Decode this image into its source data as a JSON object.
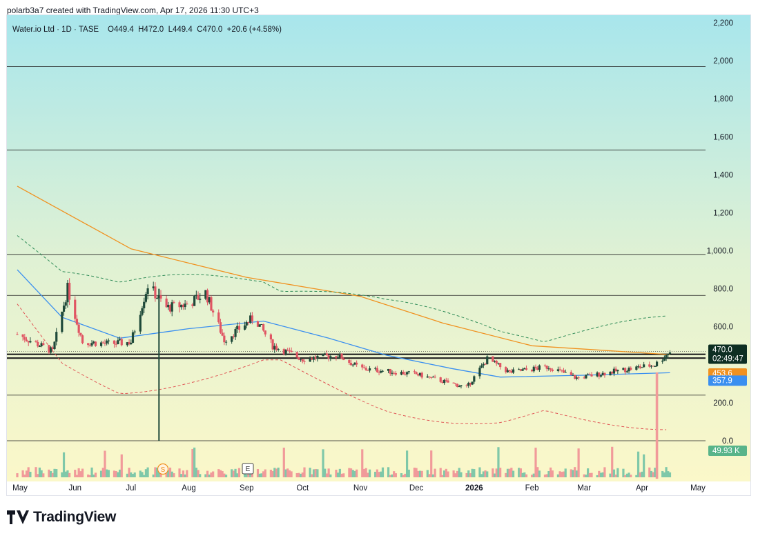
{
  "header": {
    "published_by": "polarb3a7 created with TradingView.com, Apr 17, 2026 11:30 UTC+3"
  },
  "legend": {
    "symbol": "Water.io Ltd · 1D · TASE",
    "ohlc": "O449.4  H472.0  L449.4  C470.0  +20.6 (+4.58%)"
  },
  "price_axis": {
    "ticks": [
      "2,200",
      "2,000",
      "1,800",
      "1,600",
      "1,400",
      "1,200",
      "1,000.0",
      "800.0",
      "600.0",
      "200.0",
      "0.0"
    ]
  },
  "time_axis": {
    "ticks": [
      "May",
      "Jun",
      "Jul",
      "Aug",
      "Sep",
      "Oct",
      "Nov",
      "Dec",
      "2026",
      "Feb",
      "Mar",
      "Apr",
      "May"
    ]
  },
  "badges": {
    "last_price": "470.0",
    "countdown": "02:49:47",
    "ma_orange": "453.6",
    "ma_blue": "357.9",
    "volume": "49.93 K"
  },
  "event_markers": {
    "split": "S",
    "earnings": "E"
  },
  "brand": {
    "name": "TradingView"
  },
  "colors": {
    "up": "#1f4a3a",
    "down": "#e05563",
    "vol_up": "#7fc8a9",
    "vol_down": "#f19a9a",
    "ma_long": "#f0911f",
    "ma_short": "#3a8ff0",
    "bb": "#2e8b57",
    "bb_lower": "#e05555",
    "hline": "#1e1e1e",
    "badge_dark": "#0d2e22",
    "badge_orange": "#f0911f",
    "badge_blue": "#3a8ff0",
    "badge_green": "#58b48a",
    "bg_top": "#a8e6ec",
    "bg_bottom": "#fdf8c8"
  },
  "chart_data": {
    "type": "candlestick",
    "yscale": "linear",
    "ylim": [
      -200,
      2200
    ],
    "horizontal_lines": [
      1970,
      1530,
      980,
      765,
      455,
      435,
      240,
      0
    ],
    "x_labels": [
      "May",
      "Jun",
      "Jul",
      "Aug",
      "Sep",
      "Oct",
      "Nov",
      "Dec",
      "2026",
      "Feb",
      "Mar",
      "Apr",
      "May"
    ],
    "price_path": [
      [
        "2025-05-01",
        560
      ],
      [
        "2025-05-20",
        470
      ],
      [
        "2025-05-28",
        800
      ],
      [
        "2025-06-05",
        520
      ],
      [
        "2025-06-20",
        510
      ],
      [
        "2025-07-01",
        520
      ],
      [
        "2025-07-10",
        820
      ],
      [
        "2025-07-20",
        700
      ],
      [
        "2025-08-01",
        720
      ],
      [
        "2025-08-10",
        780
      ],
      [
        "2025-08-20",
        530
      ],
      [
        "2025-09-05",
        650
      ],
      [
        "2025-09-15",
        500
      ],
      [
        "2025-10-01",
        430
      ],
      [
        "2025-10-20",
        450
      ],
      [
        "2025-11-01",
        380
      ],
      [
        "2025-12-01",
        350
      ],
      [
        "2025-12-28",
        280
      ],
      [
        "2026-01-08",
        430
      ],
      [
        "2026-01-20",
        360
      ],
      [
        "2026-02-10",
        390
      ],
      [
        "2026-02-25",
        330
      ],
      [
        "2026-03-20",
        370
      ],
      [
        "2026-04-08",
        400
      ],
      [
        "2026-04-16",
        470
      ]
    ],
    "last": {
      "open": 449.4,
      "high": 472.0,
      "low": 449.4,
      "close": 470.0,
      "change": 20.6,
      "change_pct": 4.58
    },
    "moving_averages": [
      {
        "color": "orange",
        "last": 453.6,
        "path": [
          [
            "2025-05-01",
            1340
          ],
          [
            "2025-07-01",
            1010
          ],
          [
            "2025-09-01",
            860
          ],
          [
            "2025-11-01",
            760
          ],
          [
            "2025-12-15",
            620
          ],
          [
            "2026-02-01",
            500
          ],
          [
            "2026-04-16",
            453.6
          ]
        ]
      },
      {
        "color": "blue",
        "last": 357.9,
        "path": [
          [
            "2025-05-01",
            900
          ],
          [
            "2025-05-25",
            650
          ],
          [
            "2025-06-25",
            540
          ],
          [
            "2025-08-01",
            590
          ],
          [
            "2025-09-10",
            630
          ],
          [
            "2025-10-15",
            540
          ],
          [
            "2025-11-15",
            450
          ],
          [
            "2025-12-20",
            380
          ],
          [
            "2026-01-15",
            335
          ],
          [
            "2026-03-01",
            345
          ],
          [
            "2026-04-16",
            357.9
          ]
        ]
      }
    ],
    "volume_last": "49.93 K"
  }
}
